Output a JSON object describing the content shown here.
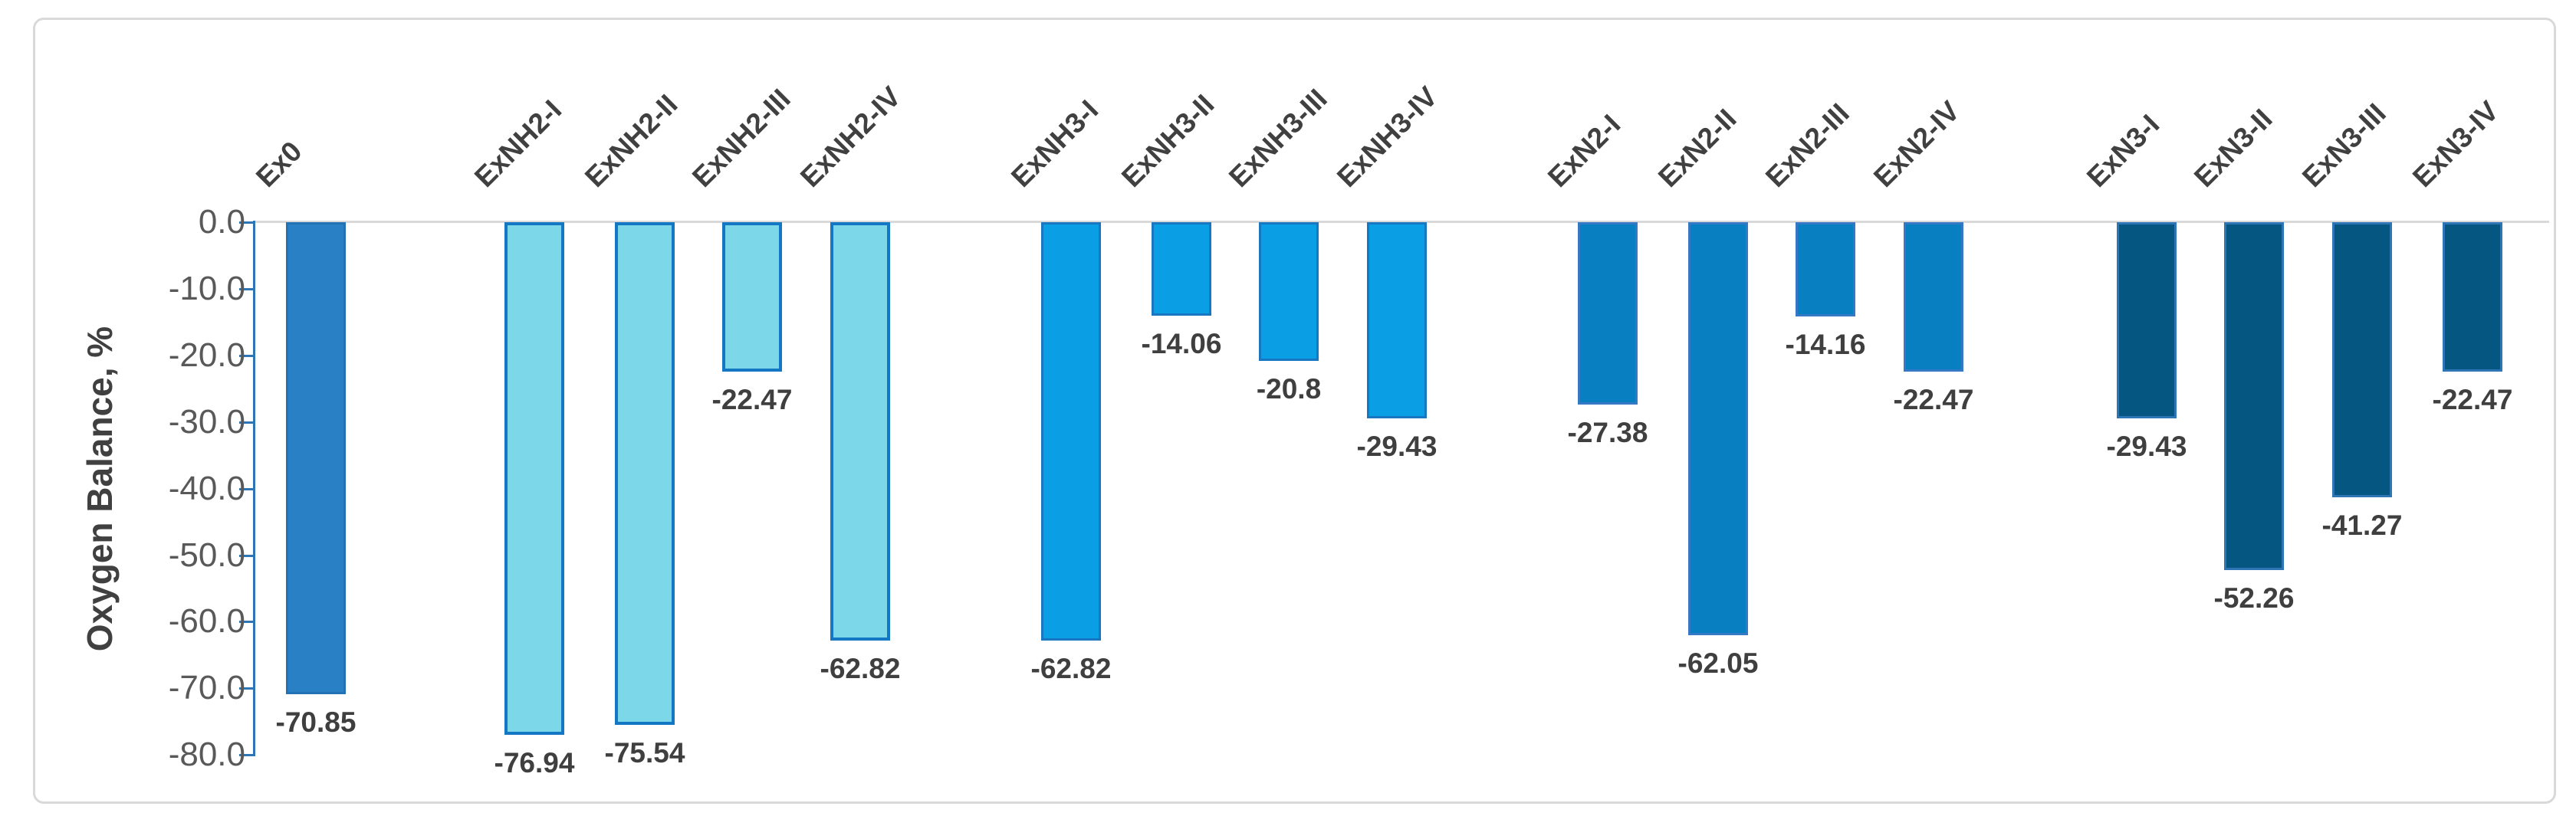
{
  "chart_data": {
    "type": "bar",
    "title": "",
    "xlabel": "",
    "ylabel": "Oxygen Balance, %",
    "ylim": [
      0,
      -80
    ],
    "ytick_step": -10,
    "ytick_labels": [
      "0.0",
      "-10.0",
      "-20.0",
      "-30.0",
      "-40.0",
      "-50.0",
      "-60.0",
      "-70.0",
      "-80.0"
    ],
    "grid": "zero-baseline-only",
    "legend_position": "none",
    "bar_orientation": "vertical-negative",
    "categories": [
      "Ex0",
      "ExNH2-I",
      "ExNH2-II",
      "ExNH2-III",
      "ExNH2-IV",
      "ExNH3-I",
      "ExNH3-II",
      "ExNH3-III",
      "ExNH3-IV",
      "ExN2-I",
      "ExN2-II",
      "ExN2-III",
      "ExN2-IV",
      "ExN3-I",
      "ExN3-II",
      "ExN3-III",
      "ExN3-IV"
    ],
    "values": [
      -70.85,
      -76.94,
      -75.54,
      -22.47,
      -62.82,
      -62.82,
      -14.06,
      -20.8,
      -29.43,
      -27.38,
      -62.05,
      -14.16,
      -22.47,
      -29.43,
      -52.26,
      -41.27,
      -22.47
    ],
    "value_labels": [
      "-70.85",
      "-76.94",
      "-75.54",
      "-22.47",
      "-62.82",
      "-62.82",
      "-14.06",
      "-20.8",
      "-29.43",
      "-27.38",
      "-62.05",
      "-14.16",
      "-22.47",
      "-29.43",
      "-52.26",
      "-41.27",
      "-22.47"
    ],
    "groups": [
      {
        "name": "Ex0",
        "fill": "#2A80C4",
        "border": "#2373B4",
        "border_width": 3,
        "bars": [
          {
            "label": "Ex0",
            "value": -70.85,
            "value_label": "-70.85"
          }
        ]
      },
      {
        "name": "ExNH2",
        "fill": "#7CD7E9",
        "border": "#1377C4",
        "border_width": 4,
        "bars": [
          {
            "label": "ExNH2-I",
            "value": -76.94,
            "value_label": "-76.94"
          },
          {
            "label": "ExNH2-II",
            "value": -75.54,
            "value_label": "-75.54"
          },
          {
            "label": "ExNH2-III",
            "value": -22.47,
            "value_label": "-22.47"
          },
          {
            "label": "ExNH2-IV",
            "value": -62.82,
            "value_label": "-62.82"
          }
        ]
      },
      {
        "name": "ExNH3",
        "fill": "#0A9FE5",
        "border": "#1976C0",
        "border_width": 3,
        "bars": [
          {
            "label": "ExNH3-I",
            "value": -62.82,
            "value_label": "-62.82"
          },
          {
            "label": "ExNH3-II",
            "value": -14.06,
            "value_label": "-14.06"
          },
          {
            "label": "ExNH3-III",
            "value": -20.8,
            "value_label": "-20.8"
          },
          {
            "label": "ExNH3-IV",
            "value": -29.43,
            "value_label": "-29.43"
          }
        ]
      },
      {
        "name": "ExN2",
        "fill": "#077FC0",
        "border": "#3579C6",
        "border_width": 3,
        "bars": [
          {
            "label": "ExN2-I",
            "value": -27.38,
            "value_label": "-27.38"
          },
          {
            "label": "ExN2-II",
            "value": -62.05,
            "value_label": "-62.05"
          },
          {
            "label": "ExN2-III",
            "value": -14.16,
            "value_label": "-14.16"
          },
          {
            "label": "ExN2-IV",
            "value": -22.47,
            "value_label": "-22.47"
          }
        ]
      },
      {
        "name": "ExN3",
        "fill": "#055680",
        "border": "#2E75B6",
        "border_width": 3,
        "bars": [
          {
            "label": "ExN3-I",
            "value": -29.43,
            "value_label": "-29.43"
          },
          {
            "label": "ExN3-II",
            "value": -52.26,
            "value_label": "-52.26"
          },
          {
            "label": "ExN3-III",
            "value": -41.27,
            "value_label": "-41.27"
          },
          {
            "label": "ExN3-IV",
            "value": -22.47,
            "value_label": "-22.47"
          }
        ]
      }
    ],
    "colors": {
      "axis_line": "#2E75B6",
      "tick_label": "#595959",
      "data_label": "#3F3F3F",
      "category_label": "#404040",
      "zero_gridline": "#D9D9D9",
      "frame_border": "#D9D9D9",
      "background": "#FFFFFF"
    }
  }
}
